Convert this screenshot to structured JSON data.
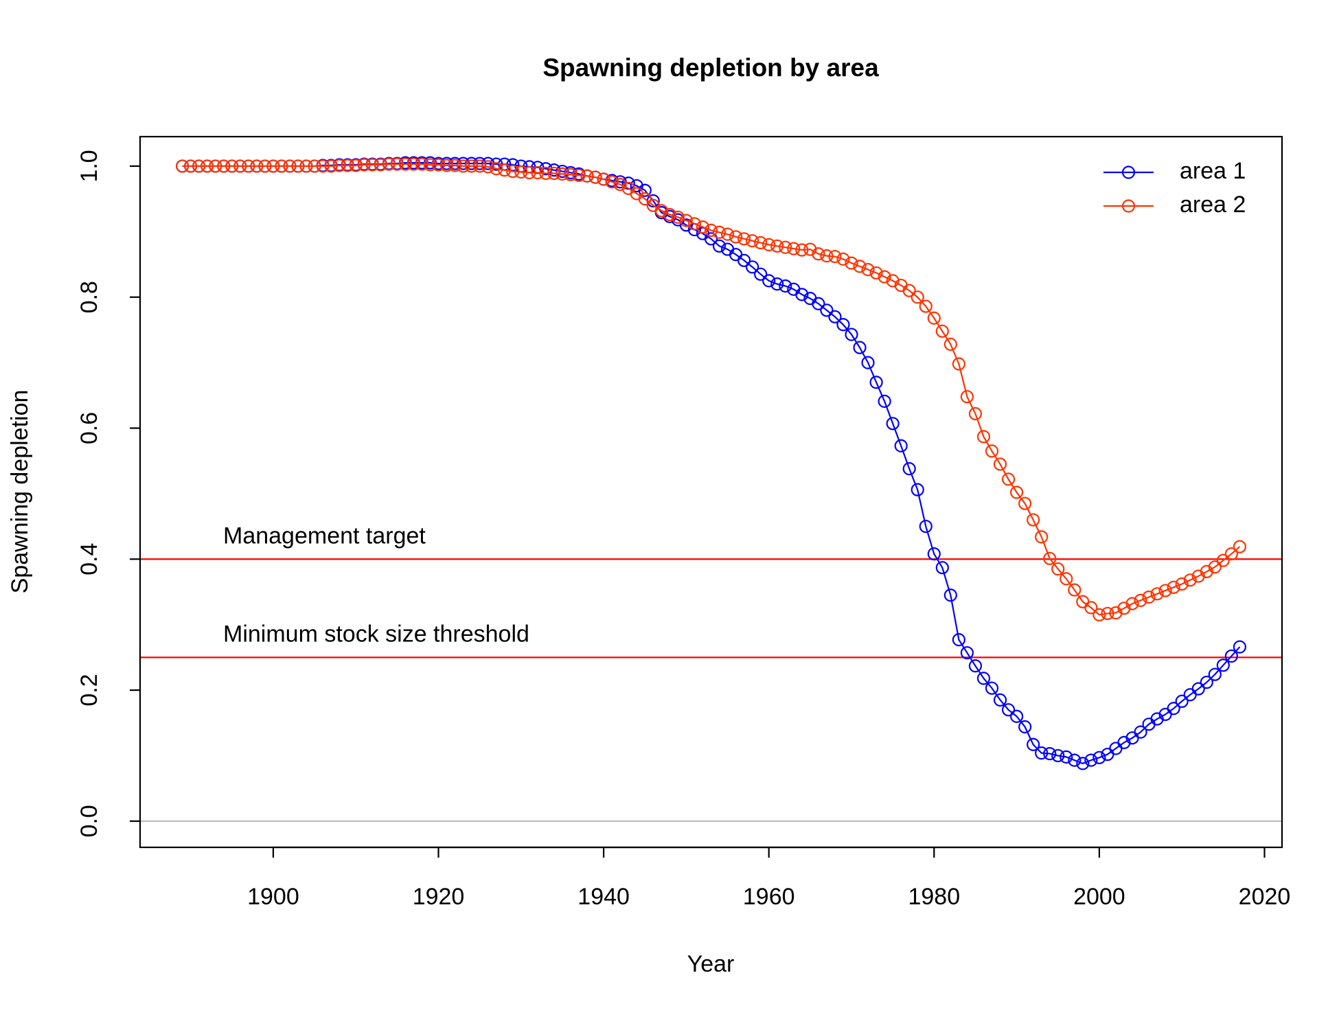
{
  "chart_data": {
    "type": "line",
    "title": "Spawning depletion by area",
    "xlabel": "Year",
    "ylabel": "Spawning depletion",
    "x": [
      1889,
      1890,
      1891,
      1892,
      1893,
      1894,
      1895,
      1896,
      1897,
      1898,
      1899,
      1900,
      1901,
      1902,
      1903,
      1904,
      1905,
      1906,
      1907,
      1908,
      1909,
      1910,
      1911,
      1912,
      1913,
      1914,
      1915,
      1916,
      1917,
      1918,
      1919,
      1920,
      1921,
      1922,
      1923,
      1924,
      1925,
      1926,
      1927,
      1928,
      1929,
      1930,
      1931,
      1932,
      1933,
      1934,
      1935,
      1936,
      1937,
      1938,
      1939,
      1940,
      1941,
      1942,
      1943,
      1944,
      1945,
      1946,
      1947,
      1948,
      1949,
      1950,
      1951,
      1952,
      1953,
      1954,
      1955,
      1956,
      1957,
      1958,
      1959,
      1960,
      1961,
      1962,
      1963,
      1964,
      1965,
      1966,
      1967,
      1968,
      1969,
      1970,
      1971,
      1972,
      1973,
      1974,
      1975,
      1976,
      1977,
      1978,
      1979,
      1980,
      1981,
      1982,
      1983,
      1984,
      1985,
      1986,
      1987,
      1988,
      1989,
      1990,
      1991,
      1992,
      1993,
      1994,
      1995,
      1996,
      1997,
      1998,
      1999,
      2000,
      2001,
      2002,
      2003,
      2004,
      2005,
      2006,
      2007,
      2008,
      2009,
      2010,
      2011,
      2012,
      2013,
      2014,
      2015,
      2016,
      2017
    ],
    "series": [
      {
        "name": "area 1",
        "color": "#0000ff",
        "values": [
          1.0,
          1.0,
          1.0,
          1.0,
          1.0,
          1.0,
          1.0,
          1.0,
          1.0,
          1.0,
          1.0,
          1.0,
          1.0,
          1.0,
          1.0,
          1.0,
          1.0,
          1.001,
          1.001,
          1.002,
          1.002,
          1.002,
          1.003,
          1.003,
          1.003,
          1.004,
          1.004,
          1.005,
          1.005,
          1.005,
          1.005,
          1.004,
          1.004,
          1.004,
          1.004,
          1.004,
          1.004,
          1.004,
          1.003,
          1.003,
          1.002,
          1.0,
          0.999,
          0.998,
          0.996,
          0.994,
          0.992,
          0.99,
          0.988,
          0.985,
          0.983,
          0.98,
          0.978,
          0.976,
          0.974,
          0.97,
          0.963,
          0.947,
          0.929,
          0.923,
          0.918,
          0.91,
          0.903,
          0.897,
          0.889,
          0.878,
          0.873,
          0.865,
          0.856,
          0.846,
          0.835,
          0.825,
          0.82,
          0.817,
          0.812,
          0.804,
          0.798,
          0.79,
          0.78,
          0.77,
          0.758,
          0.743,
          0.723,
          0.7,
          0.67,
          0.641,
          0.607,
          0.573,
          0.538,
          0.506,
          0.45,
          0.408,
          0.387,
          0.345,
          0.277,
          0.257,
          0.237,
          0.218,
          0.203,
          0.185,
          0.17,
          0.16,
          0.144,
          0.117,
          0.104,
          0.103,
          0.1,
          0.098,
          0.093,
          0.088,
          0.093,
          0.097,
          0.102,
          0.111,
          0.12,
          0.127,
          0.136,
          0.148,
          0.156,
          0.163,
          0.172,
          0.183,
          0.193,
          0.202,
          0.212,
          0.224,
          0.238,
          0.252,
          0.266
        ]
      },
      {
        "name": "area 2",
        "color": "#ff3300",
        "values": [
          1.0,
          1.0,
          1.0,
          1.0,
          1.0,
          1.0,
          1.0,
          1.0,
          1.0,
          1.0,
          1.0,
          1.0,
          1.0,
          1.0,
          1.0,
          1.0,
          1.0,
          1.0,
          1.0,
          1.001,
          1.001,
          1.001,
          1.002,
          1.002,
          1.002,
          1.003,
          1.003,
          1.003,
          1.003,
          1.003,
          1.002,
          1.002,
          1.001,
          1.001,
          1.0,
          1.0,
          1.0,
          0.999,
          0.996,
          0.994,
          0.992,
          0.991,
          0.99,
          0.99,
          0.989,
          0.989,
          0.988,
          0.987,
          0.986,
          0.985,
          0.983,
          0.98,
          0.976,
          0.972,
          0.966,
          0.958,
          0.95,
          0.94,
          0.932,
          0.926,
          0.922,
          0.917,
          0.912,
          0.907,
          0.902,
          0.899,
          0.896,
          0.892,
          0.889,
          0.886,
          0.883,
          0.88,
          0.878,
          0.876,
          0.874,
          0.872,
          0.873,
          0.866,
          0.863,
          0.862,
          0.858,
          0.852,
          0.847,
          0.842,
          0.837,
          0.831,
          0.825,
          0.818,
          0.81,
          0.8,
          0.786,
          0.768,
          0.748,
          0.728,
          0.698,
          0.648,
          0.622,
          0.587,
          0.565,
          0.545,
          0.522,
          0.502,
          0.485,
          0.46,
          0.434,
          0.401,
          0.385,
          0.37,
          0.353,
          0.335,
          0.326,
          0.315,
          0.317,
          0.318,
          0.325,
          0.332,
          0.337,
          0.342,
          0.347,
          0.352,
          0.357,
          0.362,
          0.368,
          0.374,
          0.381,
          0.388,
          0.398,
          0.408,
          0.419
        ]
      }
    ],
    "hlines": [
      {
        "value": 0.4,
        "label": "Management target",
        "color": "#ff0000"
      },
      {
        "value": 0.25,
        "label": "Minimum stock size threshold",
        "color": "#ff0000"
      },
      {
        "value": 0,
        "color": "#bebebe"
      }
    ],
    "xlim": [
      1883.88,
      2022.12
    ],
    "ylim": [
      -0.04,
      1.045
    ],
    "xticks": [
      1900,
      1920,
      1940,
      1960,
      1980,
      2000,
      2020
    ],
    "yticks": [
      {
        "value": 0,
        "label": "0.0"
      },
      0.2,
      0.4,
      0.6,
      0.8,
      {
        "value": 1,
        "label": "1.0"
      }
    ],
    "legend": "topright"
  }
}
